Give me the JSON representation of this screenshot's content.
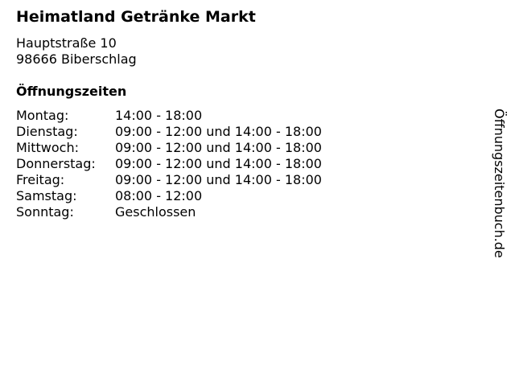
{
  "title": "Heimatland Getränke Markt",
  "address": {
    "street": "Hauptstraße 10",
    "city": "98666 Biberschlag"
  },
  "hours_heading": "Öffnungszeiten",
  "hours": [
    {
      "day": "Montag:",
      "time": "14:00 - 18:00"
    },
    {
      "day": "Dienstag:",
      "time": "09:00 - 12:00 und 14:00 - 18:00"
    },
    {
      "day": "Mittwoch:",
      "time": "09:00 - 12:00 und 14:00 - 18:00"
    },
    {
      "day": "Donnerstag:",
      "time": "09:00 - 12:00 und 14:00 - 18:00"
    },
    {
      "day": "Freitag:",
      "time": "09:00 - 12:00 und 14:00 - 18:00"
    },
    {
      "day": "Samstag:",
      "time": "08:00 - 12:00"
    },
    {
      "day": "Sonntag:",
      "time": "Geschlossen"
    }
  ],
  "side_label": "Öffnungszeitenbuch.de"
}
